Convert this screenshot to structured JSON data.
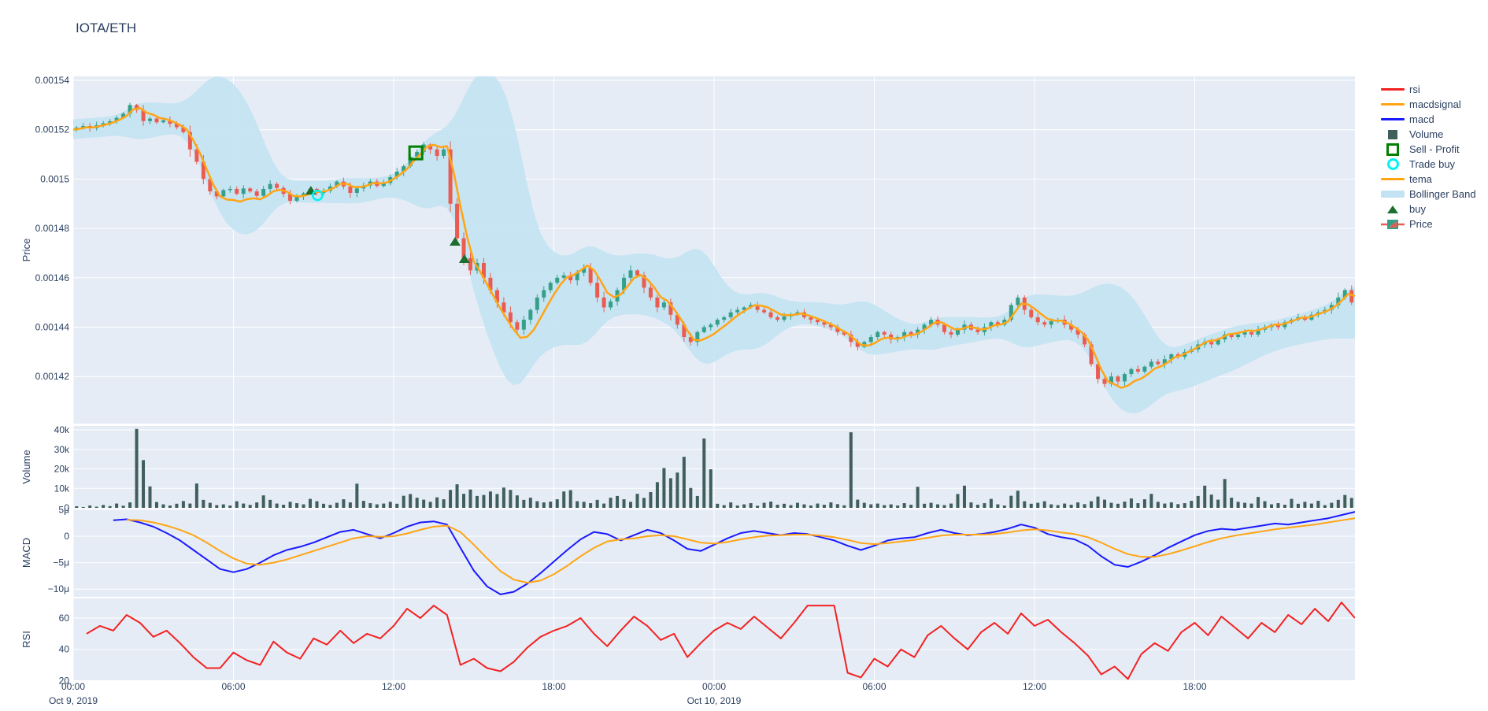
{
  "title": "IOTA/ETH",
  "colors": {
    "paper_bg": "#ffffff",
    "plot_bg": "#e5ecf6",
    "grid": "#ffffff",
    "text": "#2a3f5f",
    "candle_up": "#35a08a",
    "candle_down": "#ea5c52",
    "volume": "#3f5e5c",
    "macd": "#1a1aff",
    "macdsignal": "#ffa514",
    "tema": "#ffa514",
    "rsi": "#f32222",
    "bollinger": "#c3e3f3",
    "buy_marker": "#1b6f2f",
    "sell_profit": "#008000",
    "trade_buy": "#00f2f2"
  },
  "legend": {
    "items": [
      {
        "label": "rsi",
        "icon": "line",
        "color": "#f32222"
      },
      {
        "label": "macdsignal",
        "icon": "line",
        "color": "#ffa514"
      },
      {
        "label": "macd",
        "icon": "line",
        "color": "#1a1aff"
      },
      {
        "label": "Volume",
        "icon": "square",
        "color": "#3f5e5c"
      },
      {
        "label": "Sell - Profit",
        "icon": "square-open",
        "color": "#008000"
      },
      {
        "label": "Trade buy",
        "icon": "circle-open",
        "color": "#00f2f2"
      },
      {
        "label": "tema",
        "icon": "line",
        "color": "#ffa514"
      },
      {
        "label": "Bollinger Band",
        "icon": "band",
        "color": "#c3e3f3"
      },
      {
        "label": "buy",
        "icon": "triangle",
        "color": "#1b6f2f"
      },
      {
        "label": "Price",
        "icon": "candle",
        "color": "#35a08a"
      }
    ]
  },
  "axes": {
    "x": {
      "ticks": [
        {
          "t": 0,
          "label": "00:00",
          "date": "Oct 9, 2019"
        },
        {
          "t": 6,
          "label": "06:00"
        },
        {
          "t": 12,
          "label": "12:00"
        },
        {
          "t": 18,
          "label": "18:00"
        },
        {
          "t": 24,
          "label": "00:00",
          "date": "Oct 10, 2019"
        },
        {
          "t": 30,
          "label": "06:00"
        },
        {
          "t": 36,
          "label": "12:00"
        },
        {
          "t": 42,
          "label": "18:00"
        }
      ],
      "range_hours": [
        0,
        48
      ]
    },
    "price": {
      "title": "Price",
      "ticks": [
        {
          "v": 1540,
          "label": "0.00154"
        },
        {
          "v": 1520,
          "label": "0.00152"
        },
        {
          "v": 1500,
          "label": "0.0015"
        },
        {
          "v": 1480,
          "label": "0.00148"
        },
        {
          "v": 1460,
          "label": "0.00146"
        },
        {
          "v": 1440,
          "label": "0.00144"
        },
        {
          "v": 1420,
          "label": "0.00142"
        }
      ]
    },
    "volume": {
      "title": "Volume",
      "ticks": [
        {
          "v": 40,
          "label": "40k"
        },
        {
          "v": 30,
          "label": "30k"
        },
        {
          "v": 20,
          "label": "20k"
        },
        {
          "v": 10,
          "label": "10k"
        },
        {
          "v": 0,
          "label": "0"
        }
      ]
    },
    "macd": {
      "title": "MACD",
      "ticks": [
        {
          "v": 5,
          "label": "5μ"
        },
        {
          "v": 0,
          "label": "0"
        },
        {
          "v": -5,
          "label": "−5μ"
        },
        {
          "v": -10,
          "label": "−10μ"
        }
      ]
    },
    "rsi": {
      "title": "RSI",
      "ticks": [
        {
          "v": 60,
          "label": "60"
        },
        {
          "v": 40,
          "label": "40"
        },
        {
          "v": 20,
          "label": "20"
        }
      ]
    }
  },
  "chart_data": [
    {
      "type": "candlestick",
      "name": "Price",
      "pane": "price",
      "price_unit": "ETH x 1e-6",
      "interval_minutes": 15,
      "start": "Oct 9, 2019 00:00",
      "close": [
        1520,
        1520.8,
        1521.5,
        1520.6,
        1521.8,
        1522.6,
        1523.4,
        1524.8,
        1526.5,
        1530,
        1528,
        1523.5,
        1524.5,
        1523,
        1523.8,
        1522.4,
        1521,
        1519,
        1512,
        1507,
        1500,
        1495,
        1493,
        1495.5,
        1496,
        1494,
        1496.2,
        1495,
        1493.2,
        1496,
        1498,
        1496.4,
        1494,
        1491.2,
        1493,
        1494.2,
        1496,
        1494.4,
        1495.2,
        1497,
        1499,
        1497,
        1494.4,
        1496.2,
        1497.4,
        1499,
        1497.2,
        1498.4,
        1500.8,
        1503,
        1505.2,
        1509,
        1511,
        1514,
        1512,
        1509.4,
        1512,
        1490,
        1476,
        1468,
        1463,
        1466,
        1460,
        1455,
        1450,
        1446,
        1442,
        1439,
        1443,
        1447,
        1452,
        1455,
        1458,
        1460,
        1461,
        1459,
        1462,
        1464,
        1458,
        1452,
        1448,
        1450.4,
        1455,
        1460,
        1463,
        1461,
        1456,
        1452,
        1448,
        1450,
        1445,
        1441,
        1436,
        1434,
        1438,
        1440,
        1441,
        1443,
        1444,
        1446,
        1447,
        1448,
        1449,
        1447,
        1446,
        1444,
        1443,
        1444.4,
        1445.2,
        1446,
        1444,
        1443,
        1442,
        1441,
        1440,
        1438,
        1437,
        1434,
        1432,
        1434,
        1436,
        1438,
        1437,
        1435,
        1436,
        1438,
        1437,
        1439,
        1441,
        1443,
        1441,
        1438,
        1437,
        1439,
        1441,
        1439,
        1438,
        1440,
        1442,
        1441,
        1443,
        1449,
        1452,
        1447,
        1444,
        1442,
        1441,
        1442.4,
        1443,
        1441,
        1439,
        1437,
        1433,
        1425,
        1419,
        1417,
        1420,
        1418,
        1421,
        1423,
        1422,
        1424,
        1426,
        1425,
        1427,
        1429,
        1428,
        1430,
        1431,
        1433,
        1434,
        1433,
        1435,
        1437,
        1436,
        1437,
        1438,
        1437,
        1439,
        1440,
        1441,
        1440,
        1442,
        1443,
        1444,
        1443,
        1445,
        1446,
        1447,
        1449,
        1452,
        1455,
        1450
      ]
    },
    {
      "type": "line",
      "name": "tema",
      "pane": "price",
      "derived_from": "triple EMA of close (span 9)"
    },
    {
      "type": "area",
      "name": "Bollinger Band",
      "pane": "price",
      "derived_from": "SMA(12) of close +/- 2.5 stdev, min half-width 4e-6"
    },
    {
      "type": "bar",
      "name": "Volume",
      "pane": "volume",
      "unit": "thousands",
      "interval_minutes": 15,
      "values": [
        0.8,
        0.4,
        1.2,
        0.6,
        1.5,
        0.9,
        2.2,
        1.1,
        2.8,
        40.5,
        24.5,
        11,
        3,
        1.8,
        1.2,
        2.1,
        3.5,
        2.2,
        12.5,
        4.1,
        2.6,
        1.4,
        1.8,
        1.2,
        3.4,
        2.2,
        1.5,
        2.8,
        6.4,
        4.1,
        2.2,
        1.6,
        3.1,
        2.4,
        1.8,
        4.6,
        3.4,
        2.1,
        1.5,
        2.6,
        4.4,
        2.8,
        12.4,
        3.6,
        2.4,
        1.8,
        2.2,
        3.1,
        2.1,
        6.2,
        7.1,
        5.2,
        4.2,
        3.1,
        5.4,
        4.4,
        9.2,
        12.1,
        7.2,
        9.4,
        6.1,
        6.6,
        8.4,
        7.1,
        10.4,
        9.2,
        6.4,
        4.1,
        5.2,
        3.4,
        2.8,
        3.2,
        4.4,
        8.4,
        9.1,
        3.4,
        3.1,
        2.4,
        4.1,
        2.2,
        5.2,
        6.1,
        4.4,
        3.1,
        7.2,
        5.1,
        8.1,
        13.2,
        20.4,
        15.2,
        18.1,
        26.2,
        10.2,
        6.1,
        35.6,
        19.8,
        2.1,
        1.4,
        2.8,
        1.2,
        1.8,
        2.4,
        1.1,
        2.6,
        3.2,
        1.6,
        2.1,
        1.4,
        2.6,
        1.8,
        1.2,
        2.2,
        1.6,
        2.8,
        1.9,
        1.3,
        38.8,
        4.2,
        2.6,
        1.8,
        2.2,
        1.4,
        1.8,
        1.2,
        2.4,
        1.6,
        10.8,
        2.1,
        2.6,
        1.8,
        1.4,
        2.2,
        7.1,
        11.4,
        2.8,
        1.6,
        2.4,
        4.6,
        1.8,
        1.2,
        6.2,
        8.8,
        3.4,
        2.1,
        2.6,
        3.4,
        1.8,
        1.4,
        2.2,
        1.6,
        2.8,
        1.9,
        3.4,
        5.8,
        4.2,
        2.6,
        2.1,
        3.2,
        4.8,
        2.4,
        4.4,
        7.2,
        3.1,
        2.2,
        2.8,
        1.9,
        2.4,
        3.6,
        6.1,
        11.4,
        6.8,
        4.2,
        14.8,
        5.2,
        3.1,
        2.6,
        2.2,
        5.6,
        3.4,
        1.8,
        2.4,
        1.6,
        4.6,
        2.1,
        3.1,
        2.2,
        3.6,
        1.4,
        2.6,
        4.1,
        6.6,
        5.1
      ]
    },
    {
      "type": "line",
      "name": "macd",
      "pane": "macd",
      "unit": "micro (1e-6)",
      "interval_minutes": 30,
      "values": [
        null,
        null,
        null,
        3.0,
        3.2,
        2.6,
        1.8,
        0.6,
        -0.8,
        -2.6,
        -4.4,
        -6.2,
        -6.8,
        -6.2,
        -5.0,
        -3.6,
        -2.6,
        -2.0,
        -1.2,
        -0.2,
        0.8,
        1.2,
        0.4,
        -0.4,
        0.6,
        1.8,
        2.6,
        2.8,
        2.2,
        -2.2,
        -6.5,
        -9.5,
        -11.0,
        -10.5,
        -9.0,
        -7.0,
        -4.8,
        -2.6,
        -0.6,
        0.8,
        0.4,
        -0.8,
        0.2,
        1.2,
        0.6,
        -0.8,
        -2.4,
        -2.8,
        -1.6,
        -0.4,
        0.6,
        1.0,
        0.6,
        0.2,
        0.6,
        0.4,
        -0.2,
        -0.8,
        -1.8,
        -2.6,
        -1.8,
        -0.8,
        -0.4,
        -0.2,
        0.6,
        1.2,
        0.6,
        0.2,
        0.4,
        0.8,
        1.4,
        2.2,
        1.6,
        0.4,
        -0.2,
        -0.6,
        -1.8,
        -3.8,
        -5.4,
        -5.8,
        -4.8,
        -3.6,
        -2.2,
        -1.0,
        0.2,
        1.0,
        1.4,
        1.2,
        1.6,
        2.0,
        2.4,
        2.2,
        2.6,
        3.0,
        3.4,
        4.0,
        4.6
      ]
    },
    {
      "type": "line",
      "name": "macdsignal",
      "pane": "macd",
      "unit": "micro (1e-6)",
      "interval_minutes": 30,
      "values": [
        null,
        null,
        null,
        null,
        3.1,
        3.0,
        2.6,
        2.0,
        1.2,
        0.2,
        -1.2,
        -2.8,
        -4.2,
        -5.2,
        -5.4,
        -5.0,
        -4.4,
        -3.6,
        -2.8,
        -2.0,
        -1.2,
        -0.4,
        0.0,
        -0.1,
        0.0,
        0.5,
        1.2,
        1.8,
        2.0,
        0.8,
        -1.6,
        -4.2,
        -6.6,
        -8.2,
        -8.8,
        -8.4,
        -7.2,
        -5.6,
        -3.8,
        -2.2,
        -1.0,
        -0.6,
        -0.4,
        0.0,
        0.2,
        0.0,
        -0.6,
        -1.2,
        -1.4,
        -1.1,
        -0.6,
        -0.2,
        0.1,
        0.2,
        0.3,
        0.3,
        0.1,
        -0.2,
        -0.7,
        -1.3,
        -1.5,
        -1.3,
        -1.0,
        -0.7,
        -0.3,
        0.1,
        0.3,
        0.3,
        0.3,
        0.4,
        0.7,
        1.1,
        1.3,
        1.1,
        0.7,
        0.4,
        -0.2,
        -1.2,
        -2.4,
        -3.4,
        -3.9,
        -3.9,
        -3.4,
        -2.7,
        -1.9,
        -1.1,
        -0.4,
        0.1,
        0.5,
        0.9,
        1.3,
        1.6,
        1.9,
        2.2,
        2.6,
        3.0,
        3.4
      ]
    },
    {
      "type": "line",
      "name": "rsi",
      "pane": "rsi",
      "interval_minutes": 30,
      "values": [
        null,
        50,
        55,
        52,
        62,
        57,
        48,
        52,
        44,
        35,
        28,
        28,
        38,
        33,
        30,
        45,
        38,
        34,
        47,
        43,
        52,
        44,
        50,
        47,
        55,
        66,
        60,
        68,
        62,
        30,
        34,
        28,
        26,
        32,
        41,
        48,
        52,
        55,
        60,
        50,
        42,
        52,
        61,
        55,
        46,
        50,
        35,
        44,
        52,
        57,
        53,
        61,
        54,
        47,
        57,
        68,
        68,
        68,
        25,
        22,
        34,
        29,
        40,
        35,
        49,
        55,
        47,
        40,
        51,
        57,
        50,
        63,
        55,
        59,
        51,
        44,
        36,
        24,
        29,
        21,
        37,
        44,
        39,
        51,
        57,
        49,
        61,
        54,
        47,
        57,
        51,
        62,
        56,
        66,
        58,
        70,
        60
      ]
    },
    {
      "type": "scatter",
      "name": "buy",
      "pane": "price",
      "marker": "triangle-up",
      "points": [
        {
          "t": 8.9,
          "price": 1495.3
        },
        {
          "t": 14.3,
          "price": 1474.6
        },
        {
          "t": 14.65,
          "price": 1467.6
        }
      ]
    },
    {
      "type": "scatter",
      "name": "Trade buy",
      "pane": "price",
      "marker": "circle-open",
      "points": [
        {
          "t": 9.15,
          "price": 1493.4
        }
      ]
    },
    {
      "type": "scatter",
      "name": "Sell - Profit",
      "pane": "price",
      "marker": "square-open",
      "points": [
        {
          "t": 12.83,
          "price": 1510.6
        }
      ]
    }
  ]
}
